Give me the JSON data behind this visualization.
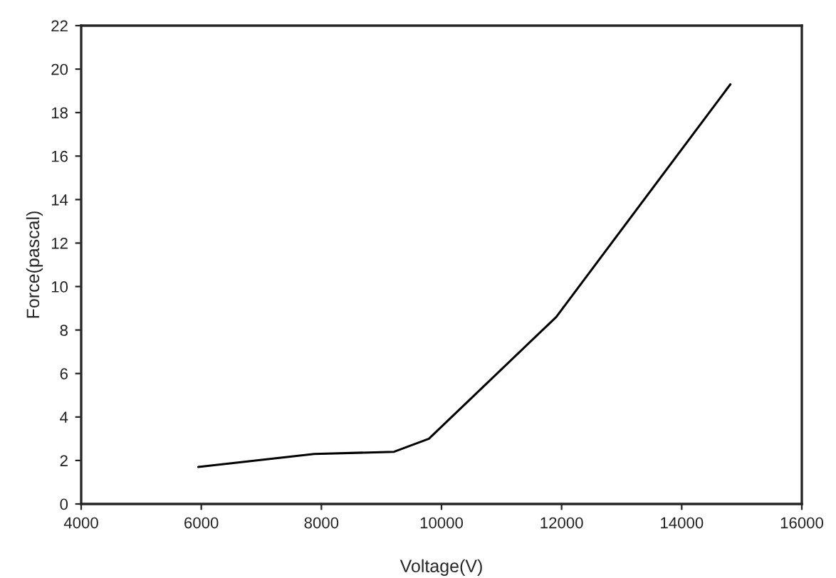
{
  "chart_data": {
    "type": "line",
    "xlabel": "Voltage(V)",
    "ylabel": "Force(pascal)",
    "x": [
      5950,
      7880,
      9210,
      9790,
      11910,
      14810
    ],
    "series": [
      {
        "color": "#000000",
        "values": [
          1.7,
          2.3,
          2.4,
          3.0,
          8.6,
          19.3
        ]
      }
    ],
    "xlim": [
      4000,
      16000
    ],
    "xticks": [
      4000,
      6000,
      8000,
      10000,
      12000,
      14000,
      16000
    ],
    "ylim": [
      0,
      22
    ],
    "yticks": [
      0,
      2,
      4,
      6,
      8,
      10,
      12,
      14,
      16,
      18,
      20,
      22
    ],
    "grid": false,
    "legend": false,
    "marker": "none",
    "line_style": "solid"
  }
}
